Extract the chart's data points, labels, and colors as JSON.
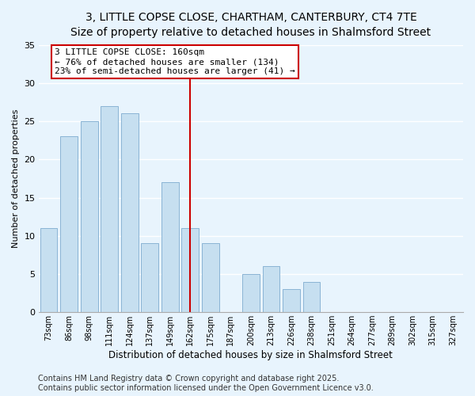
{
  "title1": "3, LITTLE COPSE CLOSE, CHARTHAM, CANTERBURY, CT4 7TE",
  "title2": "Size of property relative to detached houses in Shalmsford Street",
  "xlabel": "Distribution of detached houses by size in Shalmsford Street",
  "ylabel": "Number of detached properties",
  "bar_labels": [
    "73sqm",
    "86sqm",
    "98sqm",
    "111sqm",
    "124sqm",
    "137sqm",
    "149sqm",
    "162sqm",
    "175sqm",
    "187sqm",
    "200sqm",
    "213sqm",
    "226sqm",
    "238sqm",
    "251sqm",
    "264sqm",
    "277sqm",
    "289sqm",
    "302sqm",
    "315sqm",
    "327sqm"
  ],
  "bar_values": [
    11,
    23,
    25,
    27,
    26,
    9,
    17,
    11,
    9,
    0,
    5,
    6,
    3,
    4,
    0,
    0,
    0,
    0,
    0,
    0,
    0
  ],
  "bar_color": "#c6dff0",
  "bar_edge_color": "#8ab4d4",
  "vline_index": 7,
  "annotation_title": "3 LITTLE COPSE CLOSE: 160sqm",
  "annotation_line1": "← 76% of detached houses are smaller (134)",
  "annotation_line2": "23% of semi-detached houses are larger (41) →",
  "annotation_box_color": "#ffffff",
  "annotation_box_edge": "#cc0000",
  "vline_color": "#cc0000",
  "ylim": [
    0,
    35
  ],
  "yticks": [
    0,
    5,
    10,
    15,
    20,
    25,
    30,
    35
  ],
  "footer1": "Contains HM Land Registry data © Crown copyright and database right 2025.",
  "footer2": "Contains public sector information licensed under the Open Government Licence v3.0.",
  "bg_color": "#e8f4fd",
  "grid_color": "#ffffff",
  "title_fontsize": 10,
  "subtitle_fontsize": 9,
  "annotation_fontsize": 8,
  "footer_fontsize": 7,
  "ylabel_fontsize": 8,
  "xlabel_fontsize": 8.5
}
